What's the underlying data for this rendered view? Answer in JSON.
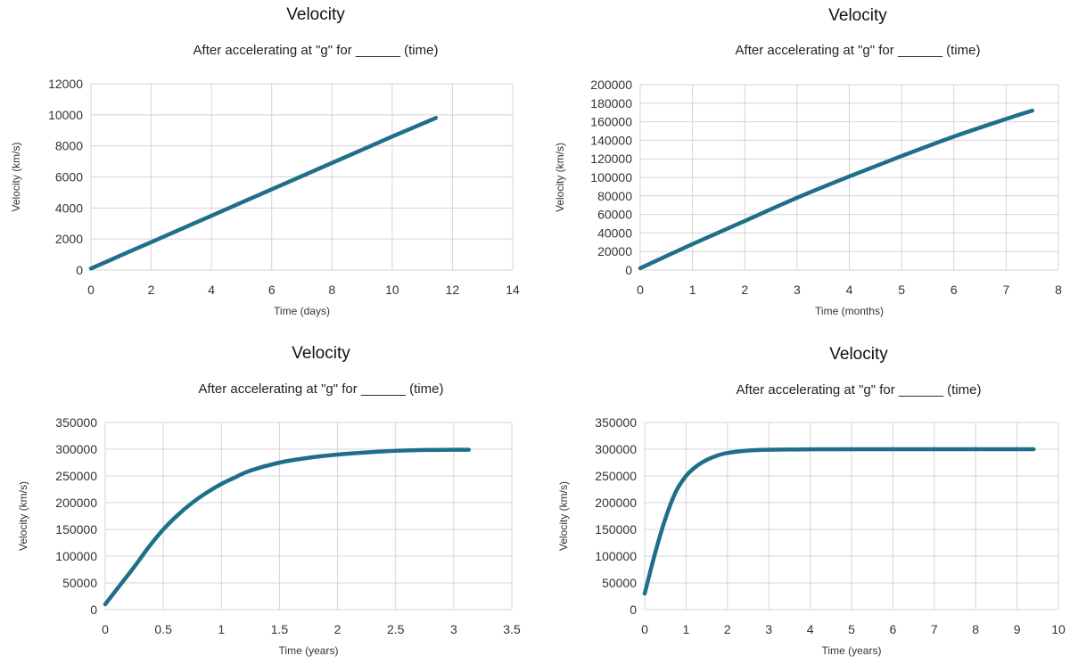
{
  "chart_data": [
    {
      "type": "line",
      "title": "Velocity",
      "subtitle": "After accelerating at \"g\" for ______ (time)",
      "xlabel": "Time  (days)",
      "ylabel": "Velocity (km/s)",
      "xlim": [
        0,
        14
      ],
      "ylim": [
        0,
        12000
      ],
      "xticks": [
        0,
        2,
        4,
        6,
        8,
        10,
        12,
        14
      ],
      "yticks": [
        0,
        2000,
        4000,
        6000,
        8000,
        10000,
        12000
      ],
      "grid": true,
      "color": "#1f6f8b",
      "x": [
        0,
        2,
        4,
        6,
        8,
        10,
        11.45
      ],
      "y": [
        100,
        1800,
        3500,
        5200,
        6900,
        8600,
        9800
      ]
    },
    {
      "type": "line",
      "title": "Velocity",
      "subtitle": "After accelerating at \"g\" for ______ (time)",
      "xlabel": "Time  (months)",
      "ylabel": "Velocity (km/s)",
      "xlim": [
        0,
        8
      ],
      "ylim": [
        0,
        200000
      ],
      "xticks": [
        0,
        1,
        2,
        3,
        4,
        5,
        6,
        7,
        8
      ],
      "yticks": [
        0,
        20000,
        40000,
        60000,
        80000,
        100000,
        120000,
        140000,
        160000,
        180000,
        200000
      ],
      "grid": true,
      "color": "#1f6f8b",
      "x": [
        0,
        1,
        2,
        3,
        4,
        5,
        6,
        7,
        7.5
      ],
      "y": [
        2000,
        28000,
        53000,
        78000,
        101000,
        123000,
        144000,
        163000,
        172000
      ]
    },
    {
      "type": "line",
      "title": "Velocity",
      "subtitle": "After accelerating at \"g\" for ______ (time)",
      "xlabel": "Time  (years)",
      "ylabel": "Velocity (km/s)",
      "xlim": [
        0,
        3.5
      ],
      "ylim": [
        0,
        350000
      ],
      "xticks": [
        0,
        0.5,
        1,
        1.5,
        2,
        2.5,
        3,
        3.5
      ],
      "yticks": [
        0,
        50000,
        100000,
        150000,
        200000,
        250000,
        300000,
        350000
      ],
      "grid": true,
      "color": "#1f6f8b",
      "x": [
        0,
        0.125,
        0.25,
        0.375,
        0.5,
        0.625,
        0.75,
        0.875,
        1,
        1.125,
        1.25,
        1.5,
        1.75,
        2,
        2.25,
        2.5,
        2.75,
        3.13
      ],
      "y": [
        10000,
        45000,
        80000,
        117000,
        150000,
        177000,
        200000,
        219000,
        235000,
        248000,
        260000,
        275000,
        284000,
        290000,
        294000,
        297000,
        298500,
        299000
      ]
    },
    {
      "type": "line",
      "title": "Velocity",
      "subtitle": "After accelerating at \"g\" for ______ (time)",
      "xlabel": "Time  (years)",
      "ylabel": "Velocity (km/s)",
      "xlim": [
        0,
        10
      ],
      "ylim": [
        0,
        350000
      ],
      "xticks": [
        0,
        1,
        2,
        3,
        4,
        5,
        6,
        7,
        8,
        9,
        10
      ],
      "yticks": [
        0,
        50000,
        100000,
        150000,
        200000,
        250000,
        300000,
        350000
      ],
      "grid": true,
      "color": "#1f6f8b",
      "x": [
        0,
        0.25,
        0.5,
        0.75,
        1,
        1.25,
        1.5,
        1.75,
        2,
        2.5,
        3,
        4,
        6,
        8,
        9.4
      ],
      "y": [
        30000,
        105000,
        170000,
        220000,
        250000,
        268000,
        280000,
        288000,
        293000,
        297500,
        299000,
        299800,
        300000,
        300000,
        300000
      ]
    }
  ]
}
